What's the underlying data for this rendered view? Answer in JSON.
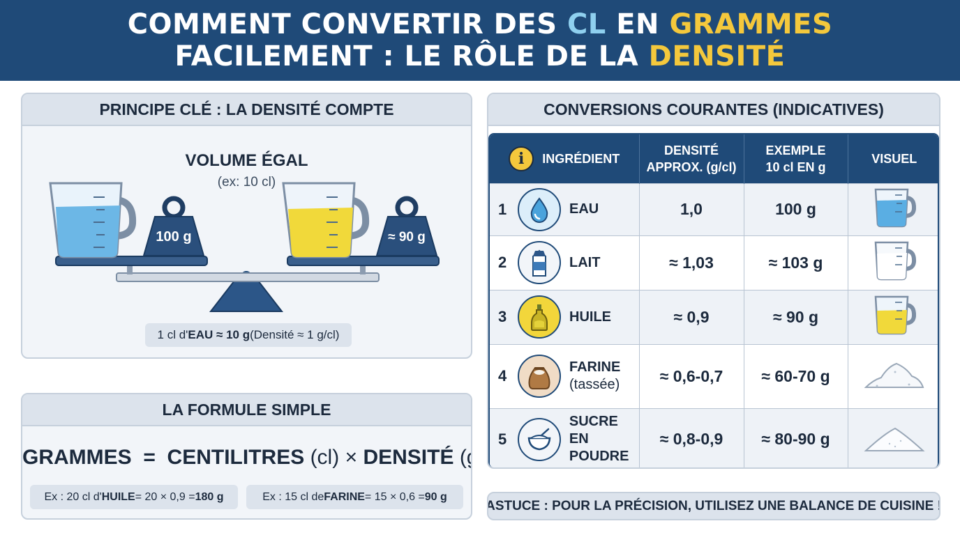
{
  "header": {
    "line1_a": "COMMENT CONVERTIR DES ",
    "line1_cl": "CL",
    "line1_b": " EN ",
    "line1_grammes": "GRAMMES",
    "line2_a": "FACILEMENT : LE RÔLE DE LA ",
    "line2_densite": "DENSITÉ"
  },
  "principe": {
    "title": "PRINCIPE CLÉ : LA DENSITÉ COMPTE",
    "volume_title": "VOLUME ÉGAL",
    "volume_sub": "(ex: 10 cl)",
    "weight_left": "100 g",
    "weight_right": "≈ 90 g",
    "note_pre": "1 cl d'",
    "note_bold": "EAU ≈ 10 g",
    "note_post": " (Densité ≈ 1 g/cl)",
    "colors": {
      "water": "#6cb7e6",
      "oil": "#f1d93a",
      "navy": "#1f4a78"
    }
  },
  "formule": {
    "title": "LA FORMULE SIMPLE",
    "grammes": "GRAMMES",
    "equals": "=",
    "centilitres": "CENTILITRES",
    "cl_unit": "(cl)",
    "times": "×",
    "densite": "DENSITÉ",
    "densite_unit": "(g/cl)",
    "ex1_pre": "Ex : 20 cl d'",
    "ex1_ing": "HUILE",
    "ex1_mid": " = 20 × 0,9 = ",
    "ex1_res": "180 g",
    "ex2_pre": "Ex : 15 cl de ",
    "ex2_ing": "FARINE",
    "ex2_mid": " = 15 × 0,6 = ",
    "ex2_res": "90 g"
  },
  "conversions": {
    "title": "CONVERSIONS COURANTES (INDICATIVES)",
    "headers": {
      "ingredient": "INGRÉDIENT",
      "densite_1": "DENSITÉ",
      "densite_2": "APPROX. (g/cl)",
      "exemple_1": "EXEMPLE",
      "exemple_2": "10 cl EN g",
      "visuel": "VISUEL"
    },
    "rows": [
      {
        "num": "1",
        "name": "EAU",
        "name_sub": "",
        "density": "1,0",
        "example": "100 g",
        "icon": "water-drop-icon",
        "visual": "measuring-cup-water"
      },
      {
        "num": "2",
        "name": "LAIT",
        "name_sub": "",
        "density": "≈ 1,03",
        "example": "≈ 103 g",
        "icon": "milk-carton-icon",
        "visual": "measuring-cup-milk"
      },
      {
        "num": "3",
        "name": "HUILE",
        "name_sub": "",
        "density": "≈ 0,9",
        "example": "≈ 90 g",
        "icon": "oil-bottle-icon",
        "visual": "measuring-cup-oil"
      },
      {
        "num": "4",
        "name": "FARINE",
        "name_sub": "(tassée)",
        "density": "≈ 0,6-0,7",
        "example": "≈ 60-70 g",
        "icon": "flour-sack-icon",
        "visual": "flour-pile"
      },
      {
        "num": "5",
        "name": "SUCRE EN POUDRE",
        "name_sub": "",
        "density": "≈ 0,8-0,9",
        "example": "≈ 80-90 g",
        "icon": "sugar-bowl-icon",
        "visual": "sugar-pile"
      }
    ]
  },
  "astuce": "ASTUCE : POUR LA PRÉCISION, UTILISEZ UNE BALANCE DE CUISINE !"
}
